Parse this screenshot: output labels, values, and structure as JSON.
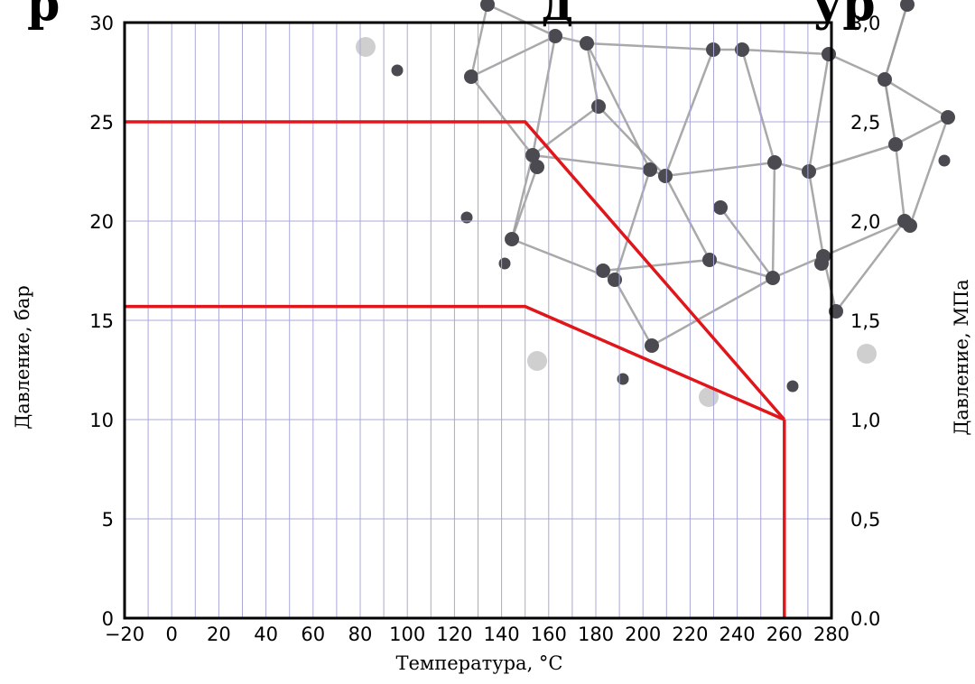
{
  "page": {
    "title_fragment": "р",
    "title_fragment_2": "д",
    "title_fragment_3": "ур"
  },
  "chart_data": {
    "type": "line",
    "title": "",
    "xlabel": "Температура, °С",
    "ylabel": "Давление, бар",
    "ylabel_right": "Давление, МПа",
    "xlim": [
      -20,
      280
    ],
    "ylim": [
      0,
      30
    ],
    "x_ticks": [
      "−20",
      "0",
      "20",
      "40",
      "60",
      "80",
      "100",
      "120",
      "140",
      "160",
      "180",
      "200",
      "220",
      "240",
      "260",
      "280"
    ],
    "x_tick_values": [
      -20,
      0,
      20,
      40,
      60,
      80,
      100,
      120,
      140,
      160,
      180,
      200,
      220,
      240,
      260,
      280
    ],
    "y_ticks": [
      "0",
      "5",
      "10",
      "15",
      "20",
      "25",
      "30"
    ],
    "y_tick_values": [
      0,
      5,
      10,
      15,
      20,
      25,
      30
    ],
    "y_right_ticks": [
      "0.0",
      "0,5",
      "1,0",
      "1,5",
      "2,0",
      "2,5",
      "3,0"
    ],
    "grid": true,
    "series_color": "#e0161b",
    "series": [
      {
        "points": [
          [
            -20,
            25
          ],
          [
            150,
            25
          ],
          [
            260,
            10
          ]
        ]
      },
      {
        "points": [
          [
            -20,
            15.7
          ],
          [
            150,
            15.7
          ],
          [
            260,
            10
          ]
        ]
      },
      {
        "points": [
          [
            260,
            10
          ],
          [
            260,
            0
          ]
        ]
      }
    ]
  }
}
